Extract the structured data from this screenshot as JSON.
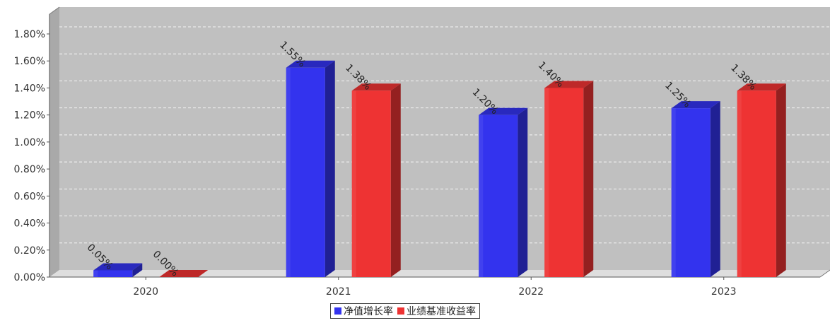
{
  "chart_data": {
    "type": "bar",
    "categories": [
      "2020",
      "2021",
      "2022",
      "2023"
    ],
    "series": [
      {
        "name": "净值增长率",
        "values": [
          0.05,
          1.55,
          1.2,
          1.25
        ],
        "labels": [
          "0.05%",
          "1.55%",
          "1.20%",
          "1.25%"
        ],
        "color": "#3333ee"
      },
      {
        "name": "业绩基准收益率",
        "values": [
          0.0,
          1.38,
          1.4,
          1.38
        ],
        "labels": [
          "0.00%",
          "1.38%",
          "1.40%",
          "1.38%"
        ],
        "color": "#ee3333"
      }
    ],
    "yticks": [
      "0.00%",
      "0.20%",
      "0.40%",
      "0.60%",
      "0.80%",
      "1.00%",
      "1.20%",
      "1.40%",
      "1.60%",
      "1.80%"
    ],
    "ylim": [
      0,
      1.8
    ],
    "grid": true,
    "legend_position": "bottom-center",
    "plot_background": "#c0c0c0"
  }
}
